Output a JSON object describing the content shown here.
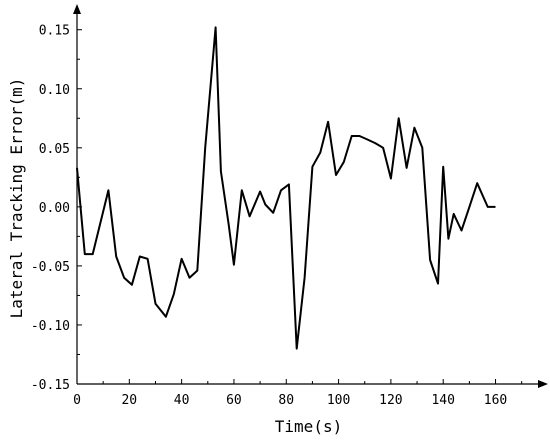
{
  "chart_data": {
    "type": "line",
    "title": "",
    "xlabel": "Time(s)",
    "ylabel": "Lateral Tracking Error(m)",
    "xlim": [
      0,
      177
    ],
    "ylim": [
      -0.15,
      0.165
    ],
    "xticks": [
      0,
      20,
      40,
      60,
      80,
      100,
      120,
      140,
      160
    ],
    "yticks": [
      -0.15,
      -0.1,
      -0.05,
      0.0,
      0.05,
      0.1,
      0.15
    ],
    "xtick_labels": [
      "0",
      "20",
      "40",
      "60",
      "80",
      "100",
      "120",
      "140",
      "160"
    ],
    "ytick_labels": [
      "-0.15",
      "-0.10",
      "-0.05",
      "0.00",
      "0.05",
      "0.10",
      "0.15"
    ],
    "grid": false,
    "series": [
      {
        "x": [
          0,
          3,
          6,
          12,
          15,
          18,
          21,
          24,
          27,
          30,
          34,
          37,
          40,
          43,
          46,
          49,
          53,
          55,
          58,
          60,
          63,
          66,
          70,
          72,
          75,
          78,
          81,
          84,
          87,
          90,
          93,
          96,
          99,
          102,
          105,
          108,
          111,
          114,
          117,
          120,
          123,
          126,
          129,
          132,
          135,
          138,
          140,
          142,
          144,
          147,
          150,
          153,
          157,
          160
        ],
        "y": [
          0.033,
          -0.04,
          -0.04,
          0.014,
          -0.042,
          -0.06,
          -0.066,
          -0.042,
          -0.044,
          -0.082,
          -0.093,
          -0.074,
          -0.044,
          -0.06,
          -0.054,
          0.05,
          0.152,
          0.03,
          -0.015,
          -0.049,
          0.014,
          -0.008,
          0.013,
          0.002,
          -0.005,
          0.014,
          0.019,
          -0.12,
          -0.06,
          0.034,
          0.046,
          0.072,
          0.027,
          0.038,
          0.06,
          0.06,
          0.057,
          0.054,
          0.05,
          0.024,
          0.075,
          0.033,
          0.067,
          0.05,
          -0.045,
          -0.065,
          0.034,
          -0.027,
          -0.006,
          -0.02,
          0.0,
          0.02,
          0.0,
          0.0
        ]
      }
    ],
    "color": "#000000"
  }
}
